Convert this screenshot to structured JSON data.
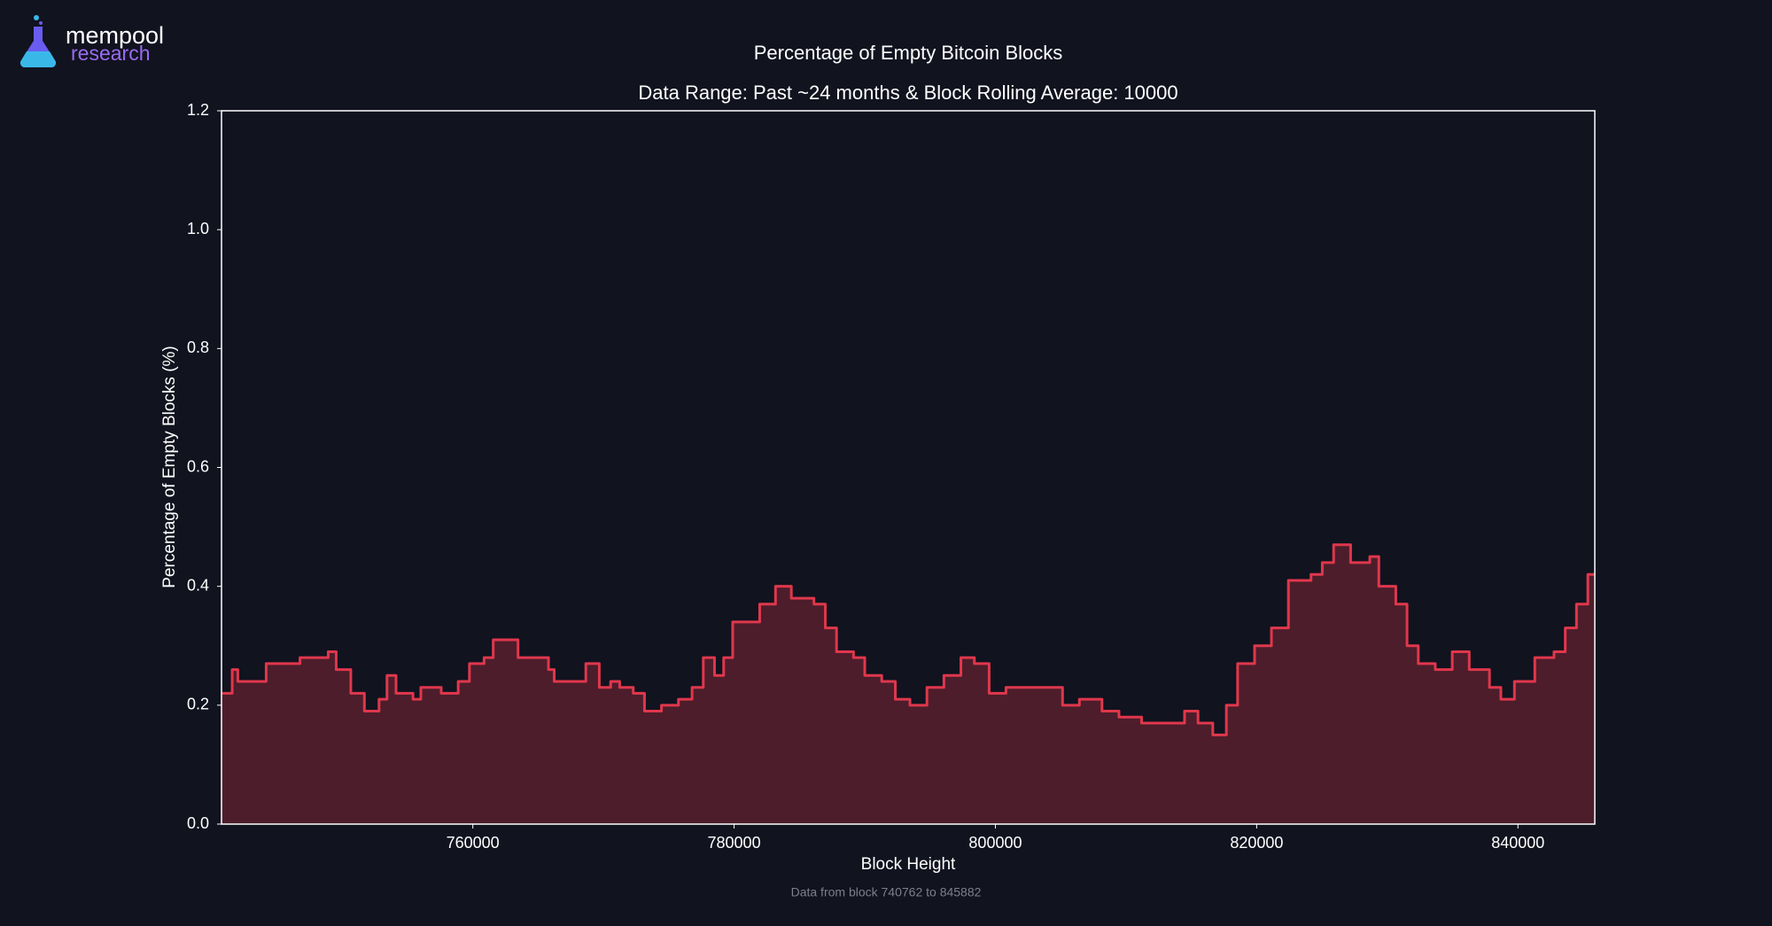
{
  "logo": {
    "line1": "mempool",
    "line2": "research"
  },
  "chart_data": {
    "type": "line",
    "title": "Percentage of Empty Bitcoin Blocks",
    "subtitle": "Data Range: Past ~24 months & Block Rolling Average: 10000",
    "x_label": "Block Height",
    "y_label": "Percentage of Empty Blocks (%)",
    "footnote": "Data from block 740762 to 845882",
    "filled": true,
    "xlim": [
      740762,
      845882
    ],
    "xticks": [
      760000,
      780000,
      800000,
      820000,
      840000
    ],
    "ylim": [
      0,
      1.2
    ],
    "yticks": [
      {
        "value": 0,
        "label": "0.0"
      },
      0.2,
      0.4,
      0.6,
      0.8,
      {
        "value": 1,
        "label": "1.0"
      },
      1.2
    ],
    "series": [
      {
        "color": "#e0374c",
        "fill": "#4d1d2b",
        "x": [
          740762,
          741580,
          742010,
          743750,
          744180,
          745470,
          746770,
          748070,
          748930,
          749540,
          750660,
          751700,
          752820,
          753430,
          754120,
          755420,
          756020,
          757580,
          758880,
          759740,
          760860,
          761560,
          762590,
          763460,
          764500,
          765790,
          766230,
          767520,
          768650,
          769680,
          770550,
          771240,
          772280,
          773140,
          774440,
          775740,
          776780,
          777640,
          778500,
          779200,
          779890,
          780930,
          781960,
          783170,
          784380,
          786110,
          786980,
          787840,
          789140,
          790000,
          791300,
          792340,
          793460,
          794760,
          796060,
          797360,
          798390,
          799520,
          800810,
          803840,
          805140,
          806430,
          808160,
          809460,
          811190,
          812920,
          814480,
          815510,
          816640,
          817680,
          818540,
          819840,
          821130,
          822430,
          824160,
          825020,
          825890,
          827190,
          828660,
          829350,
          830650,
          831510,
          832370,
          833670,
          834970,
          836270,
          837820,
          838690,
          839730,
          841290,
          842760,
          843620,
          844480,
          845350,
          845882
        ],
        "values": [
          0.22,
          0.26,
          0.24,
          0.24,
          0.27,
          0.27,
          0.28,
          0.28,
          0.29,
          0.26,
          0.22,
          0.19,
          0.21,
          0.25,
          0.22,
          0.21,
          0.23,
          0.22,
          0.24,
          0.27,
          0.28,
          0.31,
          0.31,
          0.28,
          0.28,
          0.26,
          0.24,
          0.24,
          0.27,
          0.23,
          0.24,
          0.23,
          0.22,
          0.19,
          0.2,
          0.21,
          0.23,
          0.28,
          0.25,
          0.28,
          0.34,
          0.34,
          0.37,
          0.4,
          0.38,
          0.37,
          0.33,
          0.29,
          0.28,
          0.25,
          0.24,
          0.21,
          0.2,
          0.23,
          0.25,
          0.28,
          0.27,
          0.22,
          0.23,
          0.23,
          0.2,
          0.21,
          0.19,
          0.18,
          0.17,
          0.17,
          0.19,
          0.17,
          0.15,
          0.2,
          0.27,
          0.3,
          0.33,
          0.41,
          0.42,
          0.44,
          0.47,
          0.44,
          0.45,
          0.4,
          0.37,
          0.3,
          0.27,
          0.26,
          0.29,
          0.26,
          0.23,
          0.21,
          0.24,
          0.28,
          0.29,
          0.33,
          0.37,
          0.42,
          0.42
        ]
      }
    ]
  }
}
